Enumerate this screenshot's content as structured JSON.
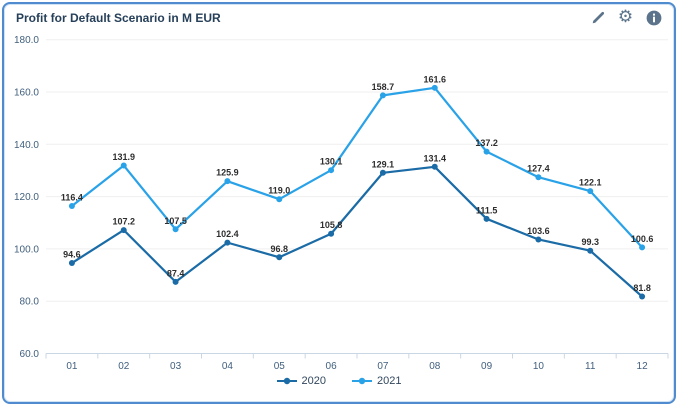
{
  "header": {
    "title": "Profit for Default Scenario in M EUR"
  },
  "toolbar": {
    "icon_color": "#5b738b",
    "gear_glyph": "⚙",
    "icons": [
      "edit",
      "settings",
      "info"
    ]
  },
  "chart_data": {
    "type": "line",
    "title": "Profit for Default Scenario in M EUR",
    "categories": [
      "01",
      "02",
      "03",
      "04",
      "05",
      "06",
      "07",
      "08",
      "09",
      "10",
      "11",
      "12"
    ],
    "series": [
      {
        "name": "2020",
        "color": "#1a6ba6",
        "values": [
          94.6,
          107.2,
          87.4,
          102.4,
          96.8,
          105.8,
          129.1,
          131.4,
          111.5,
          103.6,
          99.3,
          81.8
        ]
      },
      {
        "name": "2021",
        "color": "#29a2e8",
        "values": [
          116.4,
          131.9,
          107.5,
          125.9,
          119.0,
          130.1,
          158.7,
          161.6,
          137.2,
          127.4,
          122.1,
          100.6
        ]
      }
    ],
    "ylim": [
      60,
      180
    ],
    "ytick_step": 20,
    "ytick_labels": [
      "60.0",
      "80.0",
      "100.0",
      "120.0",
      "140.0",
      "160.0",
      "180.0"
    ],
    "grid": true,
    "data_labels": true,
    "value_decimals": 1,
    "legend_position": "bottom",
    "xlabel": "",
    "ylabel": ""
  },
  "styles": {
    "card_border": "#4f8bce",
    "grid_color": "#efefef",
    "axis_color": "#c9d7e4",
    "axis_text": "#42607e",
    "label_text": "#2e2e2e",
    "title_color": "#27405a"
  }
}
